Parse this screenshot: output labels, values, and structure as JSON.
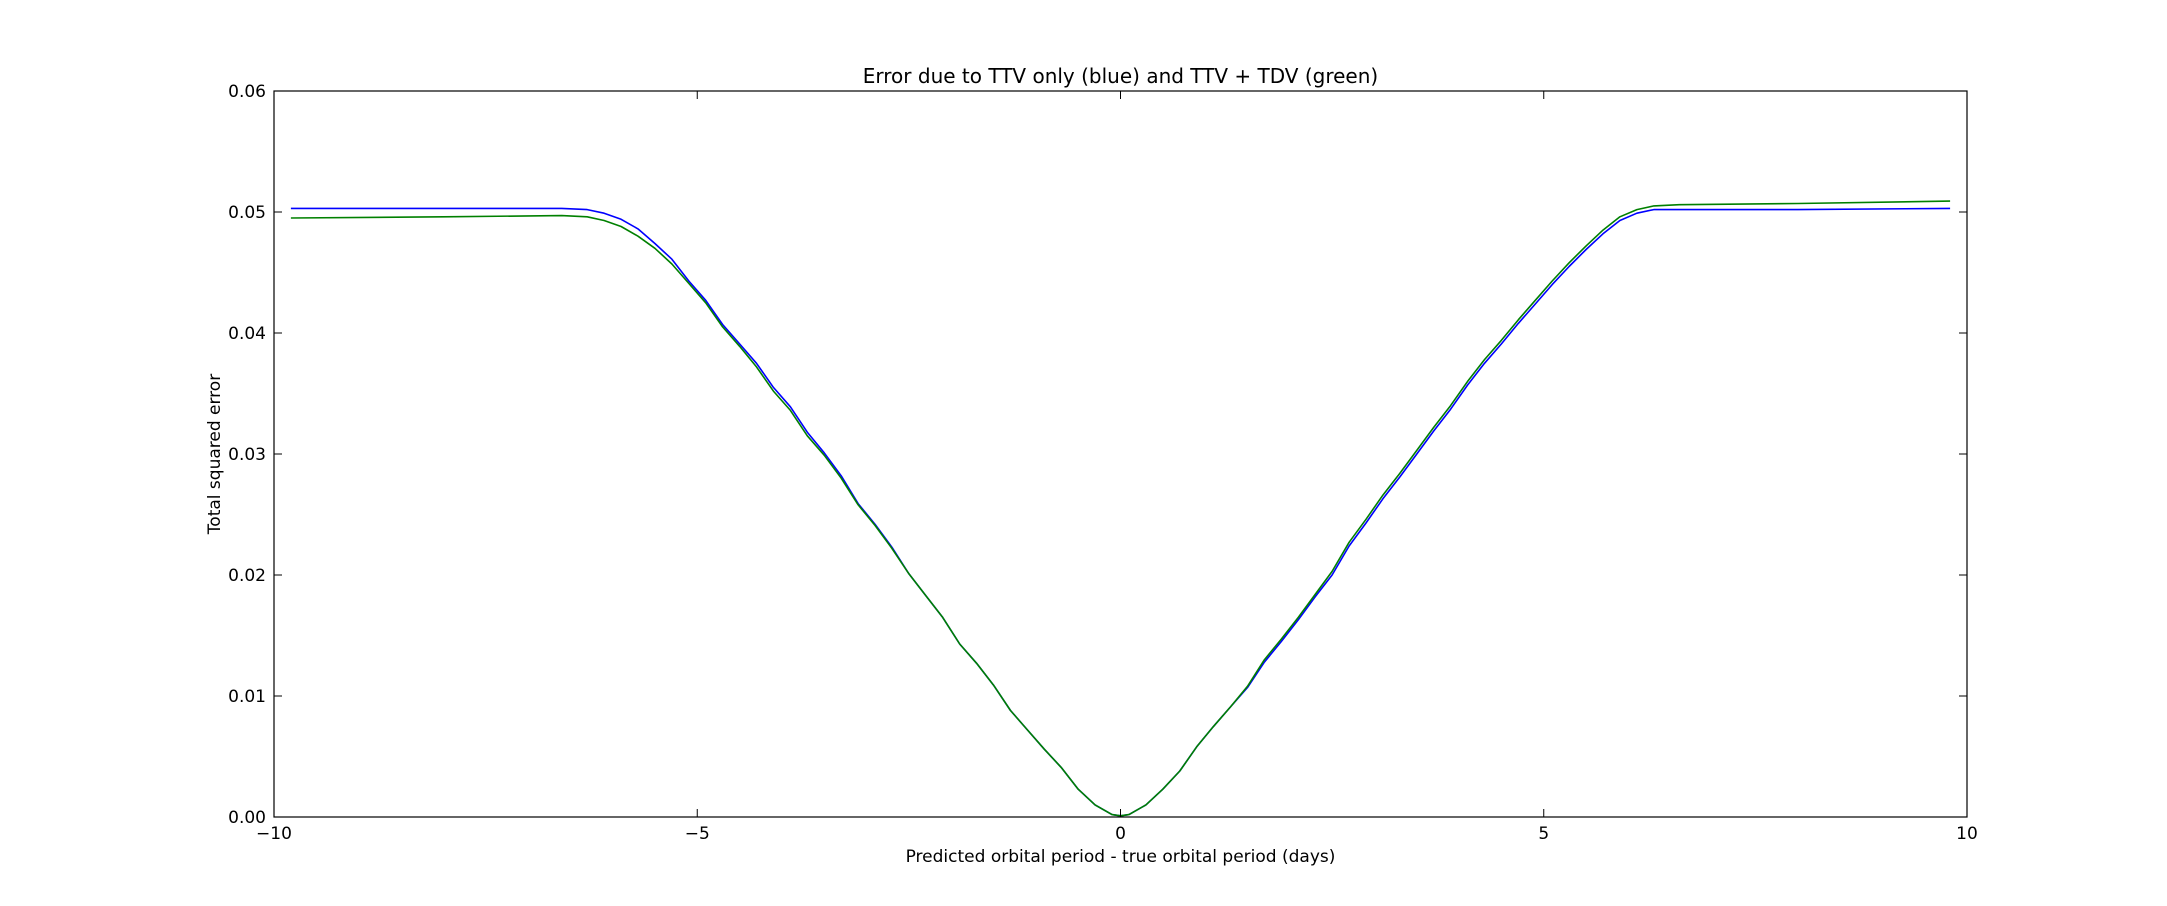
{
  "chart_data": {
    "type": "line",
    "title": "Error due to TTV only (blue) and TTV + TDV (green)",
    "xlabel": "Predicted orbital period - true orbital period (days)",
    "ylabel": "Total squared error",
    "xlim": [
      -10,
      10
    ],
    "ylim": [
      0,
      0.06
    ],
    "xticks": [
      -10,
      -5,
      0,
      5,
      10
    ],
    "xtick_labels": [
      "−10",
      "−5",
      "0",
      "5",
      "10"
    ],
    "yticks": [
      0.0,
      0.01,
      0.02,
      0.03,
      0.04,
      0.05,
      0.06
    ],
    "ytick_labels": [
      "0.00",
      "0.01",
      "0.02",
      "0.03",
      "0.04",
      "0.05",
      "0.06"
    ],
    "grid": false,
    "legend": "none",
    "series": [
      {
        "color": "#0000ff",
        "x": [
          -9.8,
          -8.0,
          -6.6,
          -6.3,
          -6.1,
          -5.9,
          -5.7,
          -5.5,
          -5.3,
          -5.1,
          -4.9,
          -4.7,
          -4.5,
          -4.3,
          -4.1,
          -3.9,
          -3.7,
          -3.5,
          -3.3,
          -3.1,
          -2.9,
          -2.7,
          -2.5,
          -2.3,
          -2.1,
          -1.9,
          -1.7,
          -1.5,
          -1.3,
          -1.1,
          -0.9,
          -0.7,
          -0.5,
          -0.3,
          -0.1,
          0.0,
          0.1,
          0.3,
          0.5,
          0.7,
          0.9,
          1.1,
          1.3,
          1.5,
          1.7,
          1.9,
          2.1,
          2.3,
          2.5,
          2.7,
          2.9,
          3.1,
          3.3,
          3.5,
          3.7,
          3.9,
          4.1,
          4.3,
          4.5,
          4.7,
          4.9,
          5.1,
          5.3,
          5.5,
          5.7,
          5.9,
          6.1,
          6.3,
          6.6,
          8.0,
          9.8
        ],
        "y": [
          0.0503,
          0.0503,
          0.0503,
          0.0502,
          0.0499,
          0.0494,
          0.0486,
          0.0474,
          0.0461,
          0.0443,
          0.0427,
          0.0407,
          0.0391,
          0.0375,
          0.0355,
          0.0339,
          0.0318,
          0.0301,
          0.0282,
          0.0259,
          0.0242,
          0.0223,
          0.0201,
          0.0183,
          0.0165,
          0.0143,
          0.0127,
          0.0109,
          0.0088,
          0.0072,
          0.0056,
          0.0041,
          0.0023,
          0.001,
          0.0002,
          0.0001,
          0.0002,
          0.001,
          0.0023,
          0.0038,
          0.0058,
          0.0075,
          0.0091,
          0.0107,
          0.0128,
          0.0145,
          0.0163,
          0.0182,
          0.02,
          0.0224,
          0.0243,
          0.0263,
          0.0281,
          0.03,
          0.0319,
          0.0337,
          0.0357,
          0.0375,
          0.0391,
          0.0408,
          0.0424,
          0.044,
          0.0455,
          0.0469,
          0.0482,
          0.0493,
          0.0499,
          0.0502,
          0.0502,
          0.0502,
          0.0503
        ]
      },
      {
        "color": "#008000",
        "x": [
          -9.8,
          -8.0,
          -6.6,
          -6.3,
          -6.1,
          -5.9,
          -5.7,
          -5.5,
          -5.3,
          -5.1,
          -4.9,
          -4.7,
          -4.5,
          -4.3,
          -4.1,
          -3.9,
          -3.7,
          -3.5,
          -3.3,
          -3.1,
          -2.9,
          -2.7,
          -2.5,
          -2.3,
          -2.1,
          -1.9,
          -1.7,
          -1.5,
          -1.3,
          -1.1,
          -0.9,
          -0.7,
          -0.5,
          -0.3,
          -0.1,
          0.0,
          0.1,
          0.3,
          0.5,
          0.7,
          0.9,
          1.1,
          1.3,
          1.5,
          1.7,
          1.9,
          2.1,
          2.3,
          2.5,
          2.7,
          2.9,
          3.1,
          3.3,
          3.5,
          3.7,
          3.9,
          4.1,
          4.3,
          4.5,
          4.7,
          4.9,
          5.1,
          5.3,
          5.5,
          5.7,
          5.9,
          6.1,
          6.3,
          6.6,
          8.0,
          9.8
        ],
        "y": [
          0.0495,
          0.0496,
          0.0497,
          0.0496,
          0.0493,
          0.0488,
          0.048,
          0.047,
          0.0457,
          0.0441,
          0.0425,
          0.0405,
          0.0389,
          0.0372,
          0.0352,
          0.0336,
          0.0315,
          0.0299,
          0.028,
          0.0258,
          0.0241,
          0.0222,
          0.0201,
          0.0183,
          0.0165,
          0.0143,
          0.0127,
          0.0109,
          0.0088,
          0.0072,
          0.0056,
          0.0041,
          0.0023,
          0.001,
          0.0002,
          0.0001,
          0.0002,
          0.001,
          0.0023,
          0.0038,
          0.0058,
          0.0075,
          0.0091,
          0.0108,
          0.013,
          0.0147,
          0.0165,
          0.0184,
          0.0203,
          0.0227,
          0.0246,
          0.0266,
          0.0284,
          0.0303,
          0.0322,
          0.034,
          0.036,
          0.0378,
          0.0394,
          0.0411,
          0.0427,
          0.0443,
          0.0458,
          0.0472,
          0.0485,
          0.0496,
          0.0502,
          0.0505,
          0.0506,
          0.0507,
          0.0509
        ]
      }
    ]
  }
}
